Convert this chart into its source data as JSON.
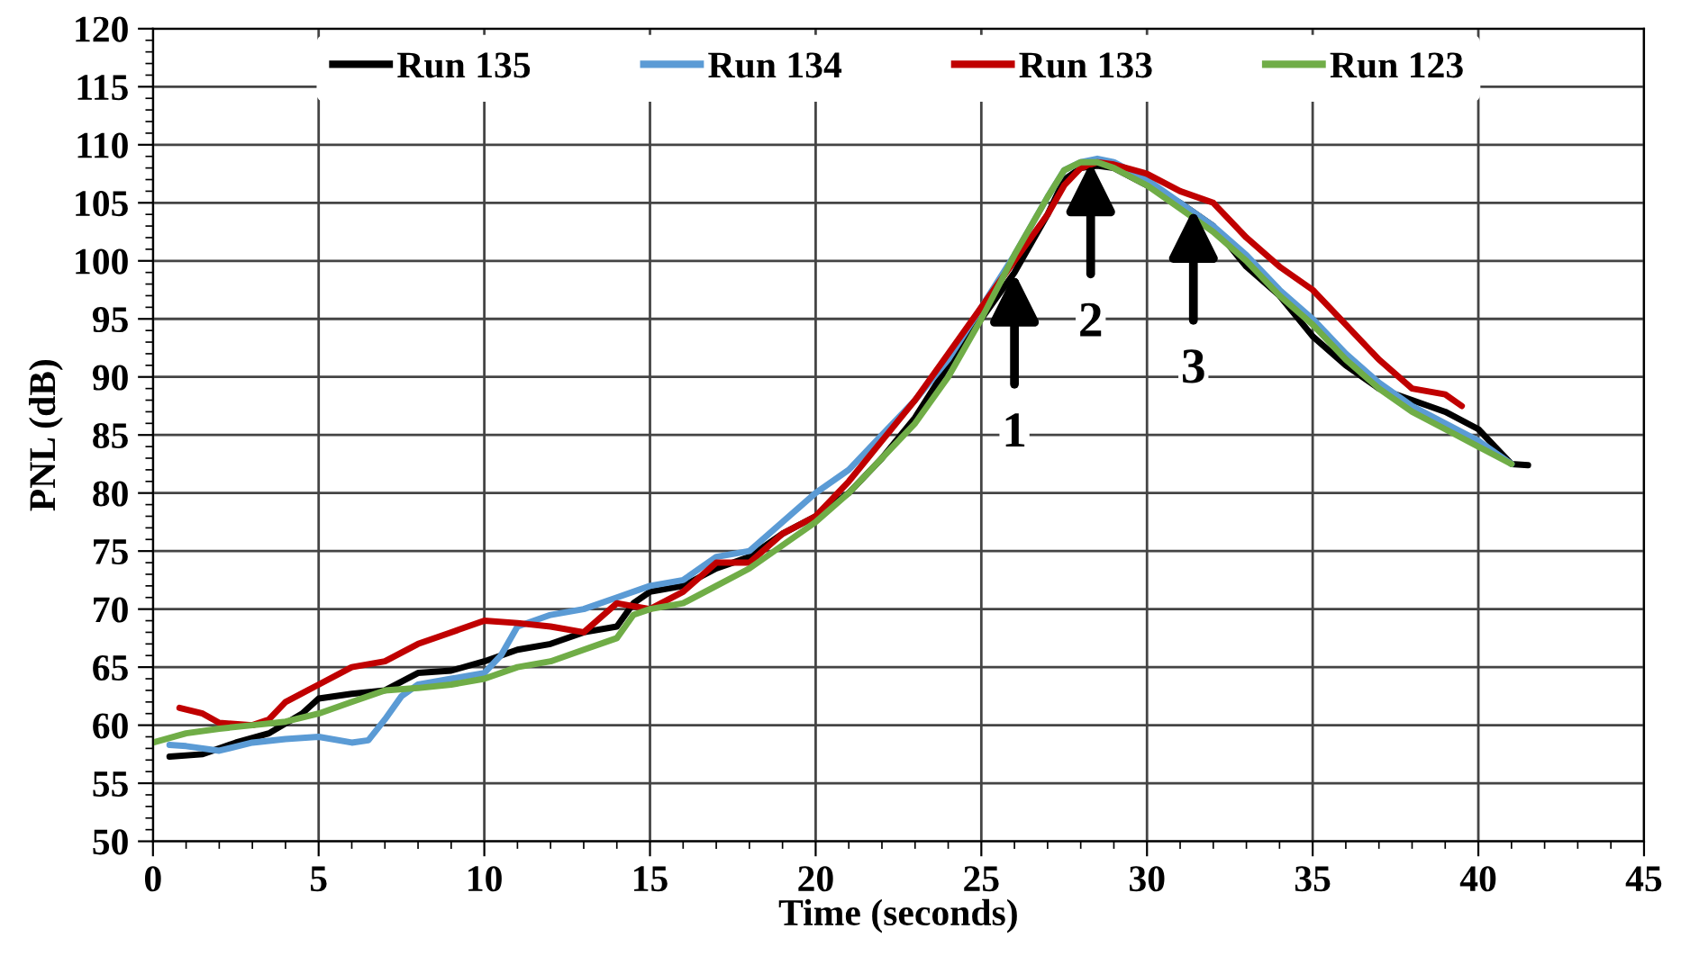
{
  "chart_data": {
    "type": "line",
    "xlabel": "Time (seconds)",
    "ylabel": "PNL (dB)",
    "xlim": [
      0,
      45
    ],
    "xticks": [
      0,
      5,
      10,
      15,
      20,
      25,
      30,
      35,
      40,
      45
    ],
    "ylim": [
      50,
      120
    ],
    "yticks": [
      50,
      55,
      60,
      65,
      70,
      75,
      80,
      85,
      90,
      95,
      100,
      105,
      110,
      115,
      120
    ],
    "grid": true,
    "legend": "top",
    "marker": "none",
    "line_style": "solid",
    "annotations": [
      {
        "text": "1",
        "x": 26,
        "y": 99
      },
      {
        "text": "2",
        "x": 28.3,
        "y": 108.5
      },
      {
        "text": "3",
        "x": 31.4,
        "y": 104.5
      }
    ],
    "series": [
      {
        "name": "Run 135",
        "color": "#000000",
        "x": [
          0.5,
          1.5,
          2.5,
          3.5,
          4.5,
          5,
          6,
          7,
          8,
          9,
          10,
          11,
          12,
          13,
          14,
          14.5,
          15,
          16,
          17,
          18,
          19,
          20,
          21,
          22,
          23,
          24,
          25,
          26,
          27,
          27.5,
          28,
          28.5,
          29,
          30,
          31,
          32,
          33,
          34,
          35,
          36,
          37,
          38,
          39,
          40,
          40.5,
          41,
          41.5
        ],
        "values": [
          57.3,
          57.5,
          58.5,
          59.3,
          61,
          62.3,
          62.7,
          63,
          64.5,
          64.7,
          65.5,
          66.5,
          67,
          68,
          68.5,
          70.5,
          71.5,
          72,
          73.5,
          74.5,
          76.5,
          78,
          80,
          83,
          86.5,
          91,
          95,
          99,
          104,
          107,
          108,
          108.2,
          108,
          106.5,
          105,
          103,
          99.5,
          97,
          93.5,
          91,
          89,
          88,
          87,
          85.5,
          84,
          82.5,
          82.4
        ]
      },
      {
        "name": "Run 134",
        "color": "#5b9bd5",
        "x": [
          0.5,
          1,
          2,
          3,
          4,
          5,
          6,
          6.5,
          7,
          7.5,
          8,
          9,
          10,
          10.5,
          11,
          12,
          13,
          14,
          15,
          16,
          17,
          18,
          19,
          20,
          21,
          22,
          23,
          24,
          25,
          26,
          27,
          27.5,
          28,
          28.5,
          29,
          30,
          31,
          32,
          33,
          34,
          35,
          36,
          37,
          38,
          39,
          40,
          41
        ],
        "values": [
          58.3,
          58.2,
          57.8,
          58.5,
          58.8,
          59,
          58.5,
          58.7,
          60.5,
          62.5,
          63.5,
          64,
          64.5,
          66,
          68.5,
          69.5,
          70,
          71,
          72,
          72.5,
          74.5,
          75,
          77.5,
          80,
          82,
          85,
          88,
          91.5,
          96,
          100.5,
          105.5,
          107.8,
          108.5,
          108.8,
          108.5,
          107,
          105,
          103,
          100.5,
          97.5,
          95,
          92,
          89.5,
          87.5,
          86,
          84.5,
          82.5
        ]
      },
      {
        "name": "Run 133",
        "color": "#c00000",
        "x": [
          0.8,
          1.5,
          2,
          3,
          3.5,
          4,
          5,
          6,
          7,
          8,
          9,
          10,
          11,
          12,
          13,
          14,
          15,
          16,
          17,
          18,
          19,
          20,
          21,
          22,
          23,
          24,
          25,
          26,
          27,
          27.5,
          28,
          28.5,
          29,
          30,
          31,
          32,
          33,
          34,
          35,
          36,
          37,
          38,
          39,
          39.5
        ],
        "values": [
          61.5,
          61,
          60.2,
          60,
          60.5,
          62,
          63.5,
          65,
          65.5,
          67,
          68,
          69,
          68.8,
          68.5,
          68,
          70.5,
          70,
          71.5,
          74,
          74,
          76.5,
          78,
          81,
          84.5,
          88,
          92,
          96,
          100,
          104,
          106.5,
          108,
          108.5,
          108.3,
          107.5,
          106,
          105,
          102,
          99.5,
          97.5,
          94.5,
          91.5,
          89,
          88.5,
          87.5
        ]
      },
      {
        "name": "Run 123",
        "color": "#70ad47",
        "x": [
          0,
          1,
          2,
          3,
          4,
          5,
          6,
          7,
          8,
          9,
          10,
          11,
          12,
          13,
          14,
          14.5,
          15,
          16,
          17,
          18,
          19,
          20,
          21,
          22,
          23,
          24,
          25,
          26,
          27,
          27.5,
          28,
          28.5,
          29,
          30,
          31,
          32,
          33,
          34,
          35,
          36,
          37,
          38,
          39,
          40,
          41
        ],
        "values": [
          58.5,
          59.3,
          59.7,
          60,
          60.3,
          61,
          62,
          63,
          63.2,
          63.5,
          64,
          65,
          65.5,
          66.5,
          67.5,
          69.5,
          70,
          70.5,
          72,
          73.5,
          75.5,
          77.5,
          80,
          83,
          86,
          90,
          95,
          100.5,
          105.5,
          107.8,
          108.5,
          108.5,
          108,
          106.5,
          104.5,
          102.5,
          100,
          97,
          94.5,
          91.5,
          89,
          87,
          85.5,
          84,
          82.5
        ]
      }
    ]
  }
}
